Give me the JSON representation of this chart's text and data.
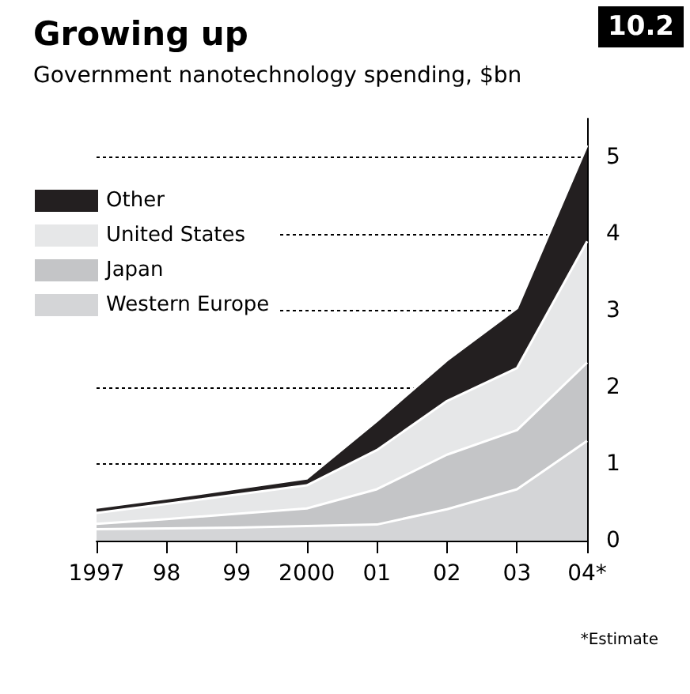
{
  "chart_data": {
    "type": "area",
    "title": "Growing up",
    "subtitle": "Government nanotechnology spending, $bn",
    "categories": [
      "1997",
      "98",
      "99",
      "2000",
      "01",
      "02",
      "03",
      "04*"
    ],
    "stacked": true,
    "series": [
      {
        "name": "Western Europe",
        "color": "#d4d5d7",
        "values": [
          0.15,
          0.16,
          0.17,
          0.19,
          0.21,
          0.41,
          0.67,
          1.3
        ]
      },
      {
        "name": "Japan",
        "color": "#c4c5c7",
        "values": [
          0.07,
          0.12,
          0.18,
          0.23,
          0.46,
          0.71,
          0.77,
          1.02
        ]
      },
      {
        "name": "United States",
        "color": "#e6e7e8",
        "values": [
          0.14,
          0.2,
          0.25,
          0.3,
          0.51,
          0.7,
          0.81,
          1.58
        ]
      },
      {
        "name": "Other",
        "color": "#231f20",
        "values": [
          0.07,
          0.07,
          0.08,
          0.09,
          0.38,
          0.53,
          0.78,
          1.25
        ]
      }
    ],
    "ylim": [
      0,
      5.5
    ],
    "yticks": [
      0,
      1,
      2,
      3,
      4,
      5
    ],
    "grid": "y",
    "legend": "top left",
    "annotations": [
      "10.2",
      "*Estimate"
    ]
  }
}
